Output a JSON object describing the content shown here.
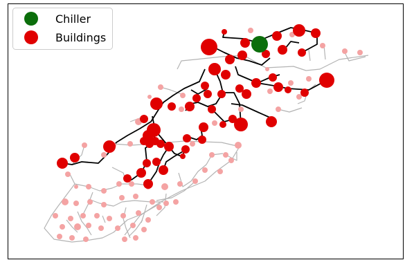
{
  "legend": {
    "chiller_label": "Chiller",
    "buildings_label": "Buildings"
  },
  "colors": {
    "chiller": "#0b6e0b",
    "building_active": "#e00000",
    "building_inactive": "#f4a3a3",
    "pipe_active": "#000000",
    "pipe_inactive": "#b3b3b3",
    "frame": "#000000",
    "legend_border": "#cccccc"
  }
}
